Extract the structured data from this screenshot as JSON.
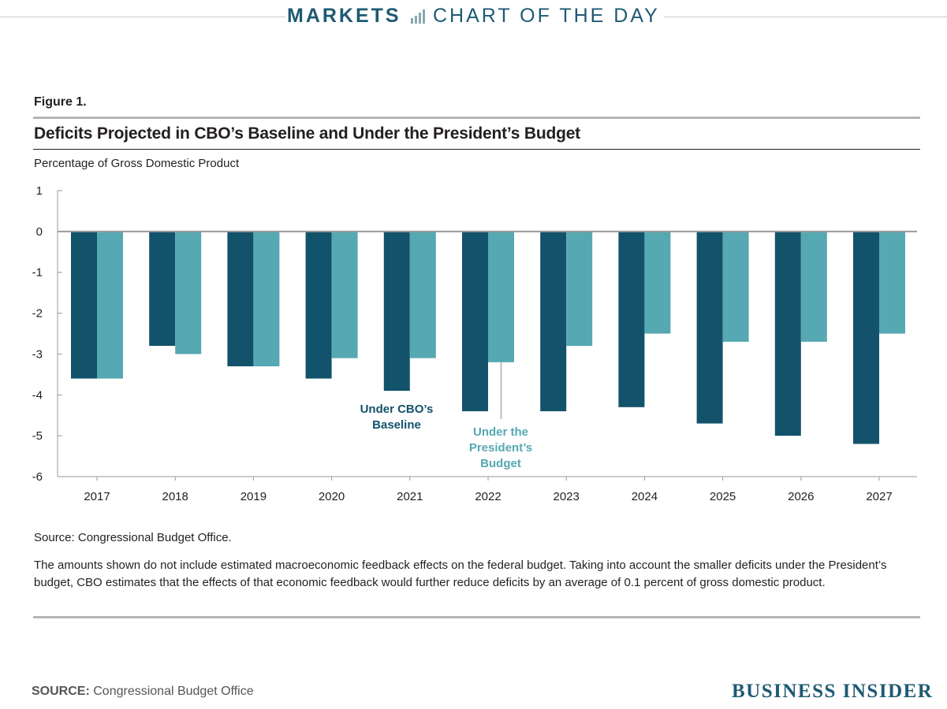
{
  "header": {
    "section": "MARKETS",
    "subsection": "CHART OF THE DAY",
    "icon": "bar-chart-icon"
  },
  "figure": {
    "label": "Figure 1.",
    "title": "Deficits Projected in CBO’s Baseline and Under the President’s Budget",
    "y_unit": "Percentage of Gross Domestic Product",
    "source": "Source: Congressional Budget Office.",
    "note": "The amounts shown do not include estimated macroeconomic feedback effects on the federal budget. Taking into account the smaller deficits under the President’s budget, CBO estimates that the effects of that economic feedback would further reduce deficits by an average of 0.1 percent of gross domestic product."
  },
  "chart_data": {
    "type": "bar",
    "title": "Deficits Projected in CBO’s Baseline and Under the President’s Budget",
    "xlabel": "",
    "ylabel": "Percentage of Gross Domestic Product",
    "ylim": [
      -6,
      1
    ],
    "yticks": [
      1,
      0,
      -1,
      -2,
      -3,
      -4,
      -5,
      -6
    ],
    "ytick_labels": [
      "1",
      "0",
      "-1",
      "-2",
      "-3",
      "-4",
      "-5",
      "-6"
    ],
    "categories": [
      "2017",
      "2018",
      "2019",
      "2020",
      "2021",
      "2022",
      "2023",
      "2024",
      "2025",
      "2026",
      "2027"
    ],
    "series": [
      {
        "name": "Under CBO’s Baseline",
        "label_lines": [
          "Under CBO’s",
          "Baseline"
        ],
        "color": "#13526b",
        "values": [
          -3.6,
          -2.8,
          -3.3,
          -3.6,
          -3.9,
          -4.4,
          -4.4,
          -4.3,
          -4.7,
          -5.0,
          -5.2
        ]
      },
      {
        "name": "Under the President’s Budget",
        "label_lines": [
          "Under the",
          "President’s",
          "Budget"
        ],
        "color": "#56a8b2",
        "values": [
          -3.6,
          -3.0,
          -3.3,
          -3.1,
          -3.1,
          -3.2,
          -2.8,
          -2.5,
          -2.7,
          -2.7,
          -2.5
        ]
      }
    ],
    "grid": false,
    "legend": "inline annotations near 2021 and 2022"
  },
  "footer": {
    "source_label": "SOURCE:",
    "source_text": "Congressional Budget Office",
    "brand": "BUSINESS INSIDER"
  },
  "colors": {
    "header_text": "#1e5a73",
    "baseline_bar": "#13526b",
    "president_bar": "#56a8b2",
    "brand": "#1e5a73"
  }
}
